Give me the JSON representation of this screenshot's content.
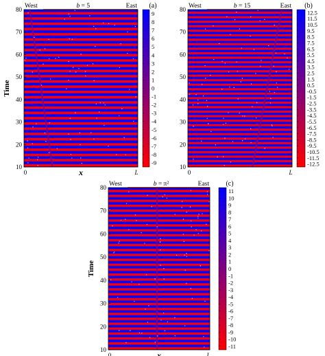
{
  "chart_data": [
    {
      "type": "heatmap",
      "panel_label": "(a)",
      "title": "b = 5",
      "title_parts": {
        "var": "b",
        "rest": " = 5"
      },
      "left_label": "West",
      "right_label": "East",
      "xlabel": "x",
      "ylabel": "Time",
      "x_ticks": [
        "0",
        "L"
      ],
      "y_ticks": [
        "10",
        "20",
        "30",
        "40",
        "50",
        "60",
        "70",
        "80"
      ],
      "ylim": [
        10,
        80
      ],
      "colorbar_ticks": [
        "9",
        "8",
        "7",
        "6",
        "5",
        "4",
        "3",
        "2",
        "1",
        "0",
        "-1",
        "-2",
        "-3",
        "-4",
        "-5",
        "-6",
        "-7",
        "-8",
        "-9"
      ],
      "colorbar_range": [
        -9,
        9
      ],
      "colors": {
        "max": "#0000ff",
        "mid": "#800080",
        "min": "#ff0000"
      },
      "stripe_period": 2.3,
      "phase_shift_line": {
        "x_top": 0.05,
        "x_bottom": 0.25
      }
    },
    {
      "type": "heatmap",
      "panel_label": "(b)",
      "title": "b = 15",
      "title_parts": {
        "var": "b",
        "rest": " = 15"
      },
      "left_label": "West",
      "right_label": "East",
      "xlabel": "",
      "ylabel": "",
      "x_ticks": [
        "0",
        "L"
      ],
      "y_ticks": [
        "10",
        "20",
        "30",
        "40",
        "50",
        "60",
        "70",
        "80"
      ],
      "ylim": [
        10,
        80
      ],
      "colorbar_ticks": [
        "12.5",
        "11.5",
        "10.5",
        "9.5",
        "8.5",
        "7.5",
        "6.5",
        "5.5",
        "4.5",
        "3.5",
        "2.5",
        "1.5",
        "0.5",
        "-0.5",
        "-1.5",
        "-2.5",
        "-3.5",
        "-4.5",
        "-5.5",
        "-6.5",
        "-7.5",
        "-8.5",
        "-9.5",
        "-10.5",
        "-11.5",
        "-12.5"
      ],
      "colorbar_range": [
        -12.5,
        12.5
      ],
      "colors": {
        "max": "#0000ff",
        "mid": "#800080",
        "min": "#ff0000"
      },
      "stripe_period": 2.0,
      "phase_shift_line": {
        "x_top": 0.9,
        "x_bottom": 0.62
      }
    },
    {
      "type": "heatmap",
      "panel_label": "(c)",
      "title": "b = π²",
      "title_parts": {
        "var": "b",
        "rest": " = π²"
      },
      "left_label": "West",
      "right_label": "East",
      "xlabel": "x",
      "ylabel": "Time",
      "x_ticks": [
        "0",
        "L"
      ],
      "y_ticks": [
        "10",
        "20",
        "30",
        "40",
        "50",
        "60",
        "70",
        "80"
      ],
      "ylim": [
        10,
        80
      ],
      "colorbar_ticks": [
        "11",
        "10",
        "9",
        "8",
        "7",
        "6",
        "5",
        "4",
        "3",
        "2",
        "1",
        "0",
        "-1",
        "-2",
        "-3",
        "-4",
        "-5",
        "-6",
        "-7",
        "-8",
        "-9",
        "-10",
        "-11"
      ],
      "colorbar_range": [
        -11,
        11
      ],
      "colors": {
        "max": "#0000ff",
        "mid": "#800080",
        "min": "#ff0000"
      },
      "stripe_period": 2.1,
      "phase_shift_line": {
        "x_top": 0.48,
        "x_bottom": 0.48
      }
    }
  ]
}
